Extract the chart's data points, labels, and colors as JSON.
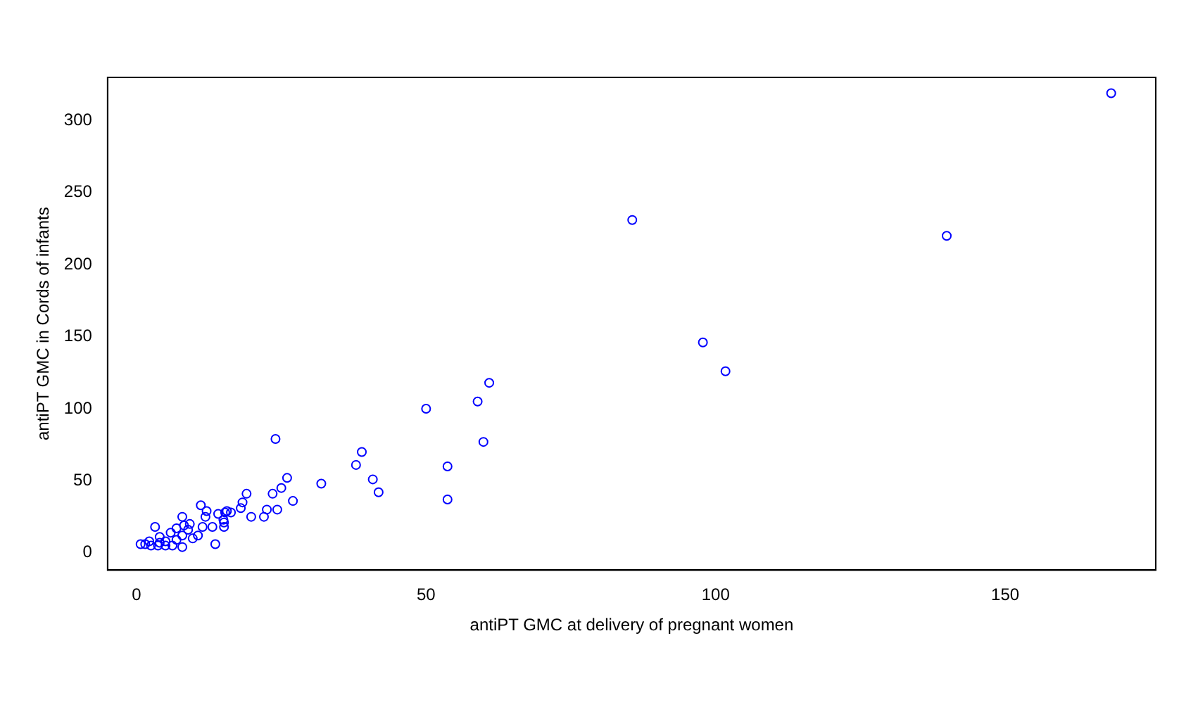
{
  "chart_data": {
    "type": "scatter",
    "xlabel": "antiPT GMC at delivery of pregnant women",
    "ylabel": "antiPT GMC in Cords of infants",
    "x": [
      168.3,
      85.6,
      139.9,
      97.8,
      101.7,
      60.9,
      58.9,
      50,
      59.9,
      53.7,
      53.7,
      38.9,
      37.9,
      40.8,
      41.8,
      31.9,
      24,
      26,
      25,
      27,
      23.5,
      22.5,
      24.3,
      22,
      19.8,
      19,
      18.3,
      18,
      15.6,
      15,
      13.6,
      11.1,
      12.1,
      14.1,
      15.3,
      16.3,
      7.9,
      11.9,
      15.1,
      15.1,
      13.1,
      11.4,
      9.2,
      8.2,
      8.9,
      6.9,
      3.2,
      5.9,
      7.9,
      10.6,
      9.7,
      6.9,
      4.0,
      5.0,
      7.9,
      0.7,
      1.5,
      2.5,
      3.7,
      5.0,
      6.2,
      4.0,
      2.2
    ],
    "series": [
      {
        "color": "#0000ff",
        "values": [
          319,
          231,
          220,
          146,
          126,
          118,
          105,
          100,
          77,
          60,
          37,
          70,
          61,
          51,
          42,
          48,
          79,
          52,
          45,
          36,
          41,
          30,
          30,
          25,
          25,
          41,
          35,
          31,
          29,
          23,
          6,
          33,
          29,
          27,
          28,
          28,
          25,
          25,
          21,
          18,
          18,
          18,
          20,
          19,
          16,
          17,
          18,
          14,
          12,
          12,
          10,
          9,
          11,
          8,
          4,
          6,
          6,
          5,
          5,
          5,
          5,
          7,
          8
        ]
      }
    ],
    "xlim": [
      -5,
      176
    ],
    "ylim": [
      -12,
      330
    ],
    "xticks": [
      0,
      50,
      100,
      150
    ],
    "yticks": [
      0,
      50,
      100,
      150,
      200,
      250,
      300
    ],
    "grid": false,
    "legend": false,
    "marker": "circle"
  }
}
